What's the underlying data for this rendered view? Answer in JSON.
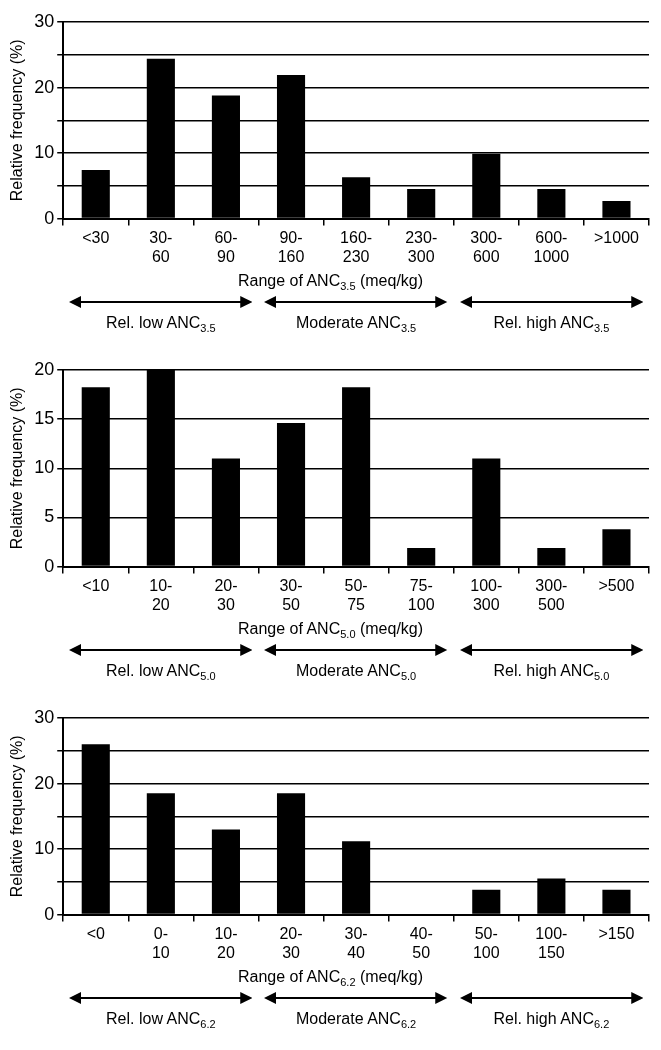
{
  "chart_data": [
    {
      "type": "bar",
      "xlabel": "Range of ANC$_{3.5}$ (meq/kg)",
      "ylabel": "Relative frequency (%)",
      "categories": [
        "<30",
        "30-60",
        "60-90",
        "90-160",
        "160-230",
        "230-300",
        "300-600",
        "600-1000",
        ">1000"
      ],
      "values": [
        7.4,
        24.4,
        18.8,
        21.9,
        6.3,
        4.5,
        9.9,
        4.5,
        2.7
      ],
      "color": "#000000",
      "ylim": [
        0,
        30
      ],
      "yticks": [
        0,
        {
          "value": 5,
          "label": null
        },
        10,
        {
          "value": 15,
          "label": null
        },
        20,
        {
          "value": 25,
          "label": null
        },
        30
      ],
      "grid": "y",
      "annotations": [
        "Rel. low ANC$_{3.5}$",
        "Moderate ANC$_{3.5}$",
        "Rel. high ANC$_{3.5}$"
      ]
    },
    {
      "type": "bar",
      "xlabel": "Range of ANC$_{5.0}$ (meq/kg)",
      "ylabel": "Relative frequency (%)",
      "categories": [
        "<10",
        "10-20",
        "20-30",
        "30-50",
        "50-75",
        "75-100",
        "100-300",
        "300-500",
        ">500"
      ],
      "values": [
        18.25,
        20,
        11,
        14.6,
        18.25,
        1.9,
        11,
        1.9,
        3.8
      ],
      "color": "#000000",
      "ylim": [
        0,
        20
      ],
      "yticks": [
        0,
        5,
        10,
        15,
        20
      ],
      "grid": "y",
      "annotations": [
        "Rel. low ANC$_{5.0}$",
        "Moderate ANC$_{5.0}$",
        "Rel. high ANC$_{5.0}$"
      ]
    },
    {
      "type": "bar",
      "xlabel": "Range of ANC$_{6.2}$ (meq/kg)",
      "ylabel": "Relative frequency (%)",
      "categories": [
        "<0",
        "0-10",
        "10-20",
        "20-30",
        "30-40",
        "40-50",
        "50-100",
        "100-150",
        ">150"
      ],
      "values": [
        26,
        18.5,
        13,
        18.5,
        11.2,
        0,
        3.8,
        5.5,
        3.8
      ],
      "color": "#000000",
      "ylim": [
        0,
        30
      ],
      "yticks": [
        0,
        {
          "value": 5,
          "label": null
        },
        10,
        {
          "value": 15,
          "label": null
        },
        20,
        {
          "value": 25,
          "label": null
        },
        30
      ],
      "grid": "y",
      "annotations": [
        "Rel. low ANC$_{6.2}$",
        "Moderate ANC$_{6.2}$",
        "Rel. high ANC$_{6.2}$"
      ]
    }
  ]
}
